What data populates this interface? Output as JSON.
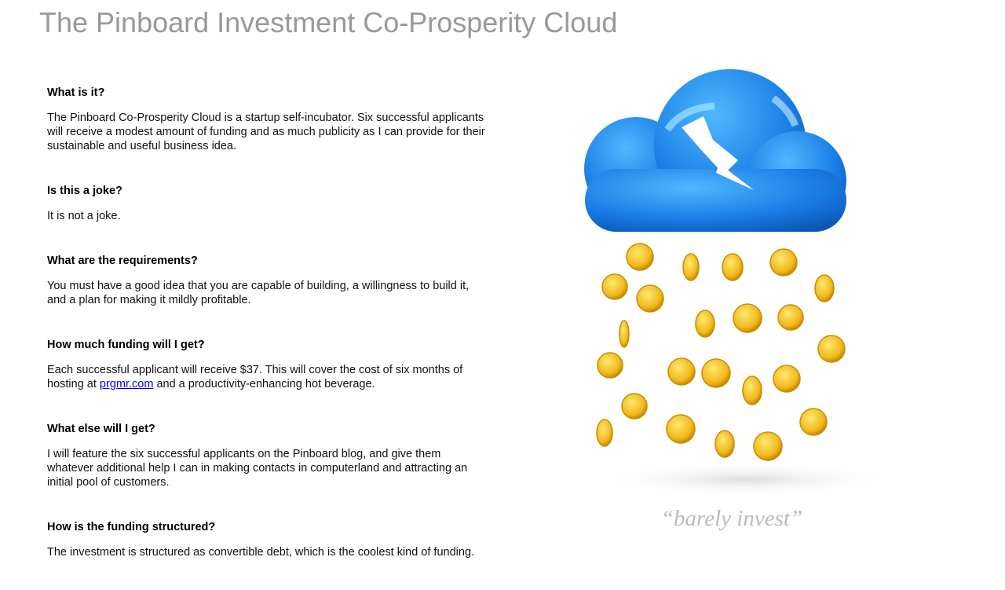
{
  "header": {
    "title": "The Pinboard Investment Co-Prosperity Cloud"
  },
  "sections": [
    {
      "question": "What is it?",
      "answer": "The Pinboard Co-Prosperity Cloud is a startup self-incubator. Six successful applicants will receive a modest amount of funding and as much publicity as I can provide for their sustainable and useful business idea."
    },
    {
      "question": "Is this a joke?",
      "answer": "It is not a joke."
    },
    {
      "question": "What are the requirements?",
      "answer": "You must have a good idea that you are capable of building, a willingness to build it, and a plan for making it mildly profitable."
    },
    {
      "question": "How much funding will I get?",
      "answer_parts": [
        "Each successful applicant will receive $37. This will cover the cost of six months of hosting at ",
        "prgmr.com",
        " and a productivity-enhancing hot beverage."
      ]
    },
    {
      "question": "What else will I get?",
      "answer": "I will feature the six successful applicants on the Pinboard blog, and give them whatever additional help I can in making contacts in computerland and attracting an initial pool of customers."
    },
    {
      "question": "How is the funding structured?",
      "answer": "The investment is structured as convertible debt, which is the coolest kind of funding."
    }
  ],
  "image": {
    "caption": "“barely invest”"
  }
}
